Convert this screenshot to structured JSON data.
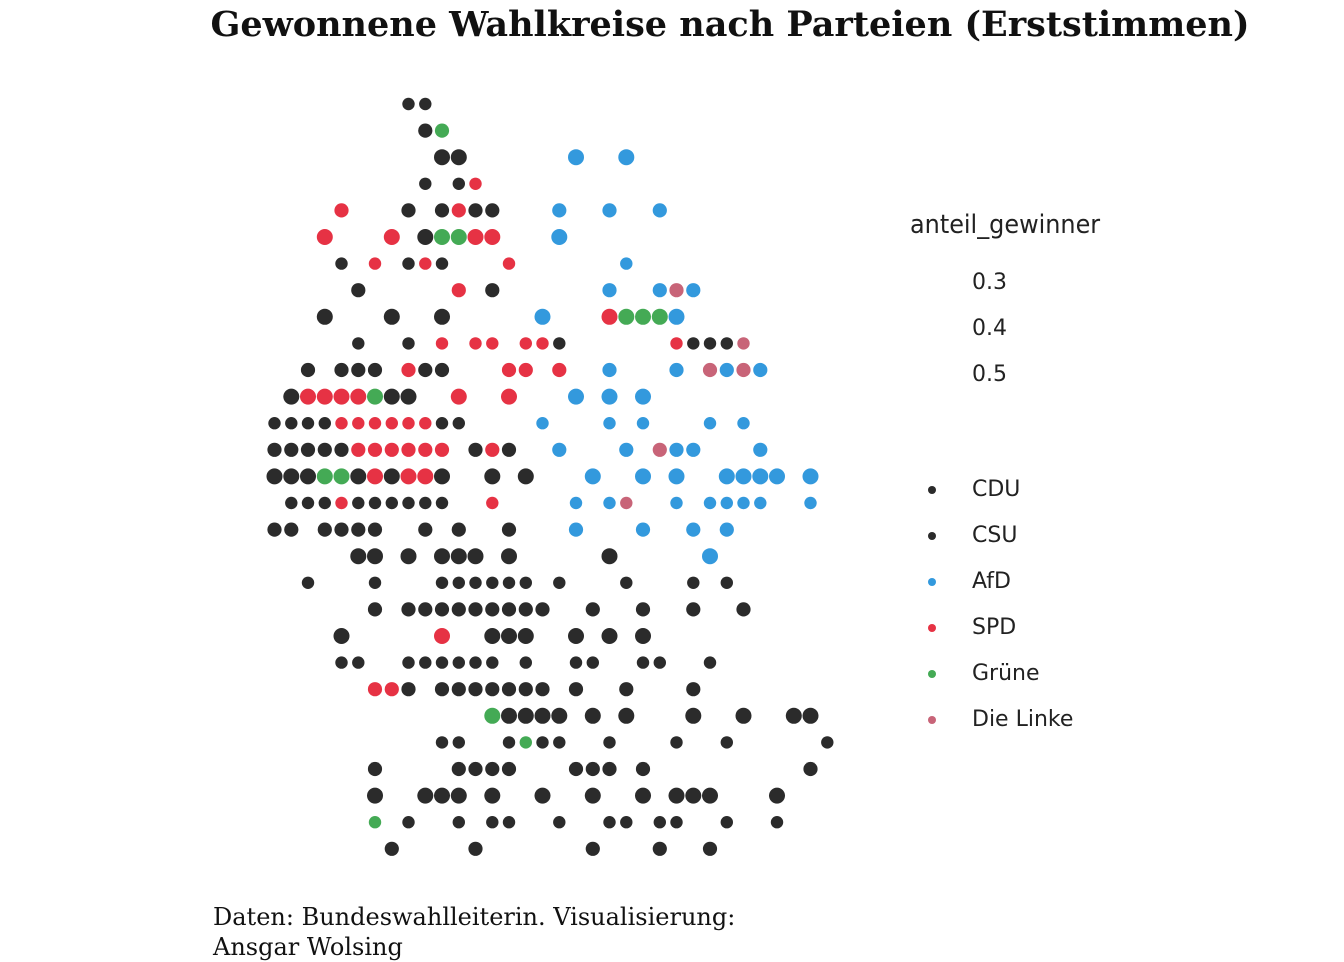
{
  "title": "Gewonnene Wahlkreise nach Parteien (Erststimmen)",
  "caption": "Daten: Bundeswahlleiterin. Visualisierung: Ansgar Wolsing",
  "legend": {
    "size_title": "anteil_gewinner",
    "size_entries": [
      "0.3",
      "0.4",
      "0.5"
    ],
    "parties": [
      {
        "name": "CDU",
        "color": "#2b2b2b"
      },
      {
        "name": "CSU",
        "color": "#2b2b2b"
      },
      {
        "name": "AfD",
        "color": "#3399dd"
      },
      {
        "name": "SPD",
        "color": "#e63244"
      },
      {
        "name": "Grüne",
        "color": "#44aa55"
      },
      {
        "name": "Die Linke",
        "color": "#c86478"
      }
    ]
  },
  "chart_data": {
    "type": "scatter",
    "title": "Gewonnene Wahlkreise nach Parteien (Erststimmen)",
    "size_variable": "anteil_gewinner",
    "grid": false,
    "axes": false,
    "colors": {
      "C": "#2b2b2b",
      "A": "#3399dd",
      "S": "#e63244",
      "G": "#44aa55",
      "L": "#c86478"
    },
    "rows": [
      [
        "..........CC......................."
      ],
      [
        "...........CG......................"
      ],
      [
        "............CC......A..A..........."
      ],
      [
        "...........C.CS...................."
      ],
      [
        "......S...C.CSCC...A..A..A........."
      ],
      [
        ".....S...S.CGGSS...A..............."
      ],
      [
        "......C.S.CSC...S......A..........."
      ],
      [
        ".......C.....S.C......A..ALA......."
      ],
      [
        ".....C...C..C.....A...SGGGA........"
      ],
      [
        ".......C..C.S.SS.SSC......SCCCL...."
      ],
      [
        "....C.CCC.SCC...SS.S..A...A.LALA..."
      ],
      [
        "...CSSSSGCC..S..S...A.A.A.........."
      ],
      [
        "..CCCCSSSSSSCC....A...A.A...A.A...."
      ],
      [
        "..CCCCCSSSSSS.CSC..A...A.LAA...A..."
      ],
      [
        "..CCCGGCSCSSC..C.C...A..A.A..AAAA.A"
      ],
      [
        "...CCCSCCCCCC..S....A.AL..A.AAAA..A"
      ],
      [
        "..CC.CCCC..C.C..C...A...A..A.A....."
      ],
      [
        ".......CC.C.CCC.C.....C.....A......"
      ],
      [
        "....C...C...CCCCCC.C...C...C.C....."
      ],
      [
        "........C.CCCCCCCCC..C..C..C..C...."
      ],
      [
        "......C.....S..CCC..C.C.C.........."
      ],
      [
        "......CC..CCCCCC.C..CC..CC..C......"
      ],
      [
        "........SSC.CCCCCCC.C..C...C......."
      ],
      [
        "...............GCCCC.C.C...C..C..CC"
      ],
      [
        "............CC..CGCC..C...C..C.....C"
      ],
      [
        "........C....CCCC...CCC.C.........C"
      ],
      [
        "........C..CCC.C..C..C..C.CCC...C.."
      ],
      [
        "........G.C..C.CC..C..CC.CC..C..C.."
      ],
      [
        ".........C....C......C...C..C......"
      ]
    ]
  }
}
